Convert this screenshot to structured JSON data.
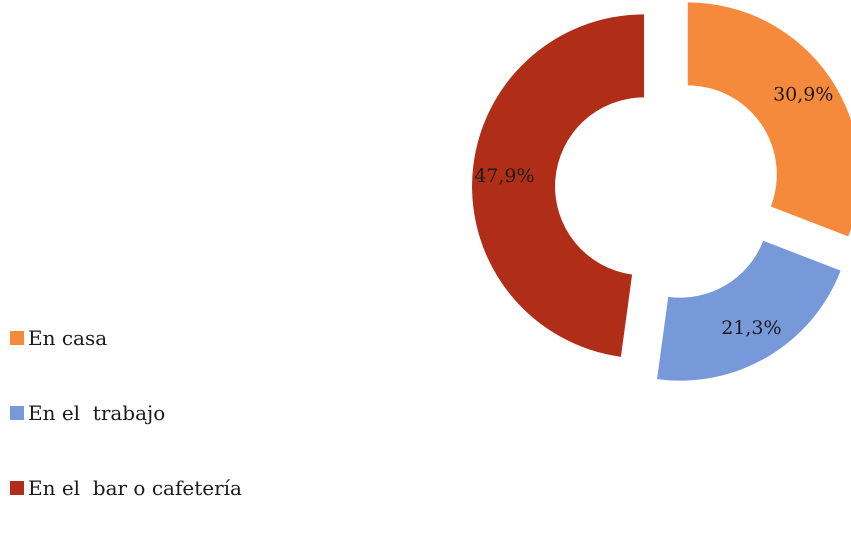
{
  "chart_data": {
    "type": "pie",
    "style": "exploded-donut",
    "title": "",
    "slices": [
      {
        "label": "En casa",
        "value": 30.9,
        "display": "30,9%",
        "color": "#F58A3C"
      },
      {
        "label": "En el  trabajo",
        "value": 21.3,
        "display": "21,3%",
        "color": "#7799D9"
      },
      {
        "label": "En el  bar o cafetería",
        "value": 47.9,
        "display": "47,9%",
        "color": "#B02E17"
      }
    ],
    "legend_position": "bottom-left"
  }
}
